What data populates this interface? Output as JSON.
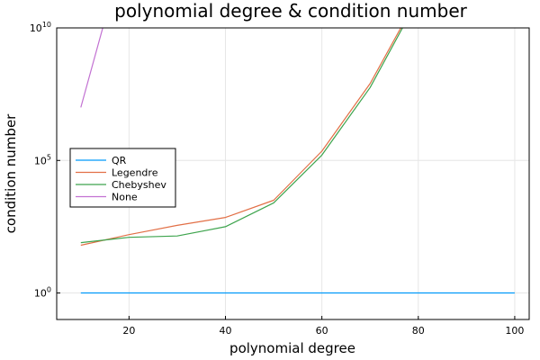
{
  "chart_data": {
    "type": "line",
    "title": "polynomial degree & condition number",
    "xlabel": "polynomial degree",
    "ylabel": "condition number",
    "xlim": [
      5,
      103
    ],
    "ylim_log10": [
      -1,
      10
    ],
    "y_scale": "log10",
    "grid": true,
    "legend_position": "left-middle",
    "x_ticks": [
      20,
      40,
      60,
      80,
      100
    ],
    "x_tick_labels": [
      "20",
      "40",
      "60",
      "80",
      "100"
    ],
    "y_ticks": [
      {
        "base": "10",
        "exp": "0",
        "log10": 0
      },
      {
        "base": "10",
        "exp": "5",
        "log10": 5
      },
      {
        "base": "10",
        "exp": "10",
        "log10": 10
      }
    ],
    "series": [
      {
        "name": "QR",
        "color": "#009AFA",
        "x": [
          10,
          100
        ],
        "y_log10": [
          0.0,
          0.0
        ]
      },
      {
        "name": "Legendre",
        "color": "#E26F46",
        "x": [
          10,
          20,
          30,
          40,
          50,
          60,
          70,
          80
        ],
        "y_log10": [
          1.8,
          2.2,
          2.55,
          2.85,
          3.5,
          5.35,
          7.9,
          11.2
        ]
      },
      {
        "name": "Chebyshev",
        "color": "#3DA44D",
        "x": [
          10,
          20,
          30,
          40,
          50,
          60,
          70,
          80
        ],
        "y_log10": [
          1.9,
          2.1,
          2.15,
          2.5,
          3.4,
          5.2,
          7.75,
          11.1
        ]
      },
      {
        "name": "None",
        "color": "#C271D2",
        "x": [
          10,
          15
        ],
        "y_log10": [
          7.0,
          10.3
        ]
      }
    ]
  }
}
